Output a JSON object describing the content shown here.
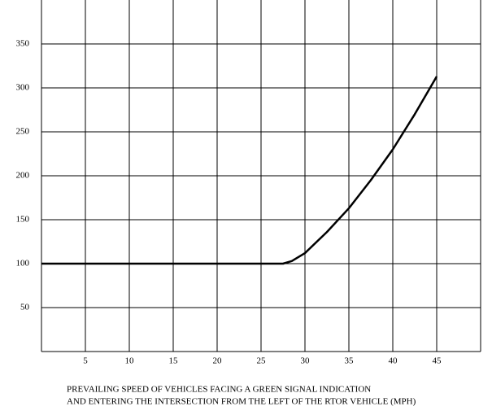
{
  "chart_data": {
    "type": "line",
    "x": [
      0,
      27.5,
      28.5,
      30,
      32.5,
      35,
      37.5,
      40,
      42.5,
      45
    ],
    "series": [
      {
        "color": "#000000",
        "values": [
          100,
          100,
          103,
          112,
          136,
          163,
          195,
          230,
          270,
          313
        ]
      }
    ],
    "xlim": [
      0,
      50
    ],
    "xticks": [
      5,
      10,
      15,
      20,
      25,
      30,
      35,
      40,
      45
    ],
    "ylim": [
      0,
      400
    ],
    "yticks": [
      50,
      100,
      150,
      200,
      250,
      300,
      350
    ],
    "grid": true,
    "xlabel": [
      "PREVAILING SPEED OF VEHICLES FACING A GREEN SIGNAL INDICATION",
      "AND ENTERING THE INTERSECTION FROM THE LEFT OF THE RTOR VEHICLE (MPH)"
    ]
  }
}
